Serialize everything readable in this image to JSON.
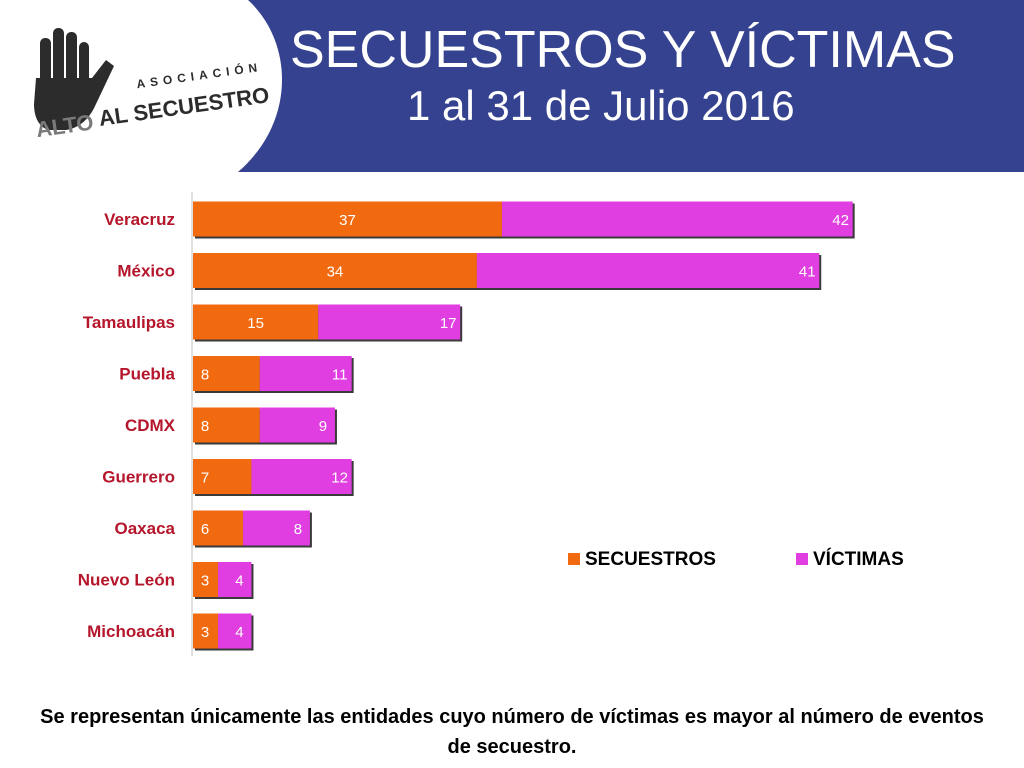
{
  "header": {
    "title": "SECUESTROS Y VÍCTIMAS",
    "subtitle": "1 al 31  de Julio 2016",
    "background_color": "#35428f"
  },
  "logo": {
    "top_text": "ASOCIACIÓN",
    "main_text_left": "ALTO",
    "main_text_right": "AL SECUESTRO",
    "icon": "raised-hand-icon"
  },
  "chart_data": {
    "type": "bar",
    "orientation": "horizontal",
    "stacked": true,
    "categories": [
      "Veracruz",
      "México",
      "Tamaulipas",
      "Puebla",
      "CDMX",
      "Guerrero",
      "Oaxaca",
      "Nuevo León",
      "Michoacán"
    ],
    "series": [
      {
        "name": "SECUESTROS",
        "color": "#f26a10",
        "values": [
          37,
          34,
          15,
          8,
          8,
          7,
          6,
          3,
          3
        ]
      },
      {
        "name": "VÍCTIMAS",
        "color": "#e03ee0",
        "values": [
          42,
          41,
          17,
          11,
          9,
          12,
          8,
          4,
          4
        ]
      }
    ],
    "title": "",
    "xlabel": "",
    "ylabel": "",
    "xlim": [
      0,
      87
    ],
    "grid": false,
    "legend": "right",
    "category_label_color": "#b5162b"
  },
  "footnote": "Se representan únicamente las entidades cuyo número de víctimas es mayor al número de eventos de secuestro."
}
